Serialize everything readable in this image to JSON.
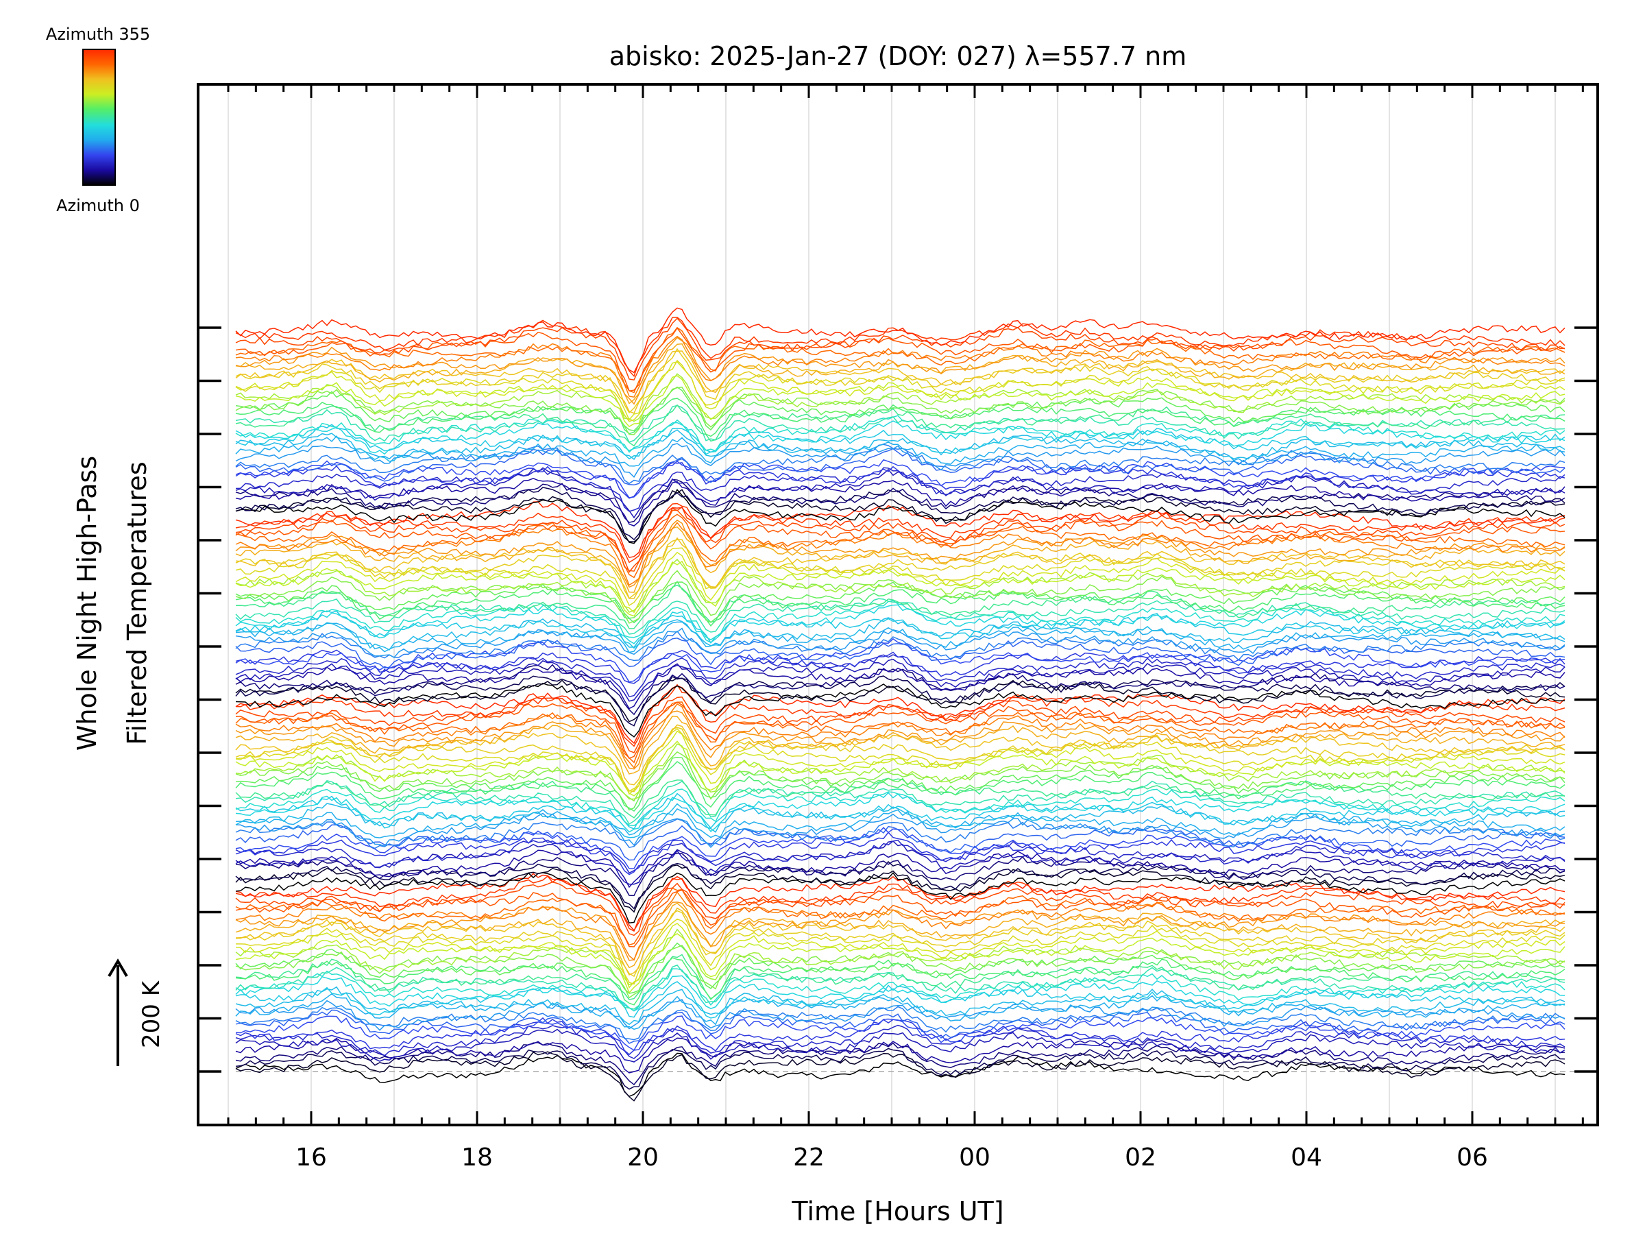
{
  "chart_data": {
    "type": "line",
    "title": "abisko: 2025-Jan-27 (DOY: 027) λ=557.7 nm",
    "xlabel": "Time [Hours UT]",
    "ylabel_line1": "Whole Night High-Pass",
    "ylabel_line2": "Filtered Temperatures",
    "scale_label": "200 K",
    "xlim_hours_ut": [
      "15:10",
      "07:20"
    ],
    "x_ticks": [
      "16",
      "18",
      "20",
      "22",
      "00",
      "02",
      "04",
      "06"
    ],
    "grid": true,
    "legend": {
      "position": "top-left",
      "type": "colorbar",
      "top_label": "Azimuth 355",
      "bottom_label": "Azimuth 0",
      "azimuth_range_deg": [
        0,
        355
      ]
    },
    "series_layout": {
      "series_count": 144,
      "azimuth_step_deg": 2.5,
      "offset_per_series_K": 9.72
    },
    "colormap_stops": [
      "#000000",
      "#1a0aa0",
      "#3344ee",
      "#22aaee",
      "#22dddd",
      "#55ee66",
      "#ccee22",
      "#f0c020",
      "#ff6600",
      "#ff2a00"
    ],
    "events": [
      {
        "hour_ut": "16:15",
        "amplitude_K": 24
      },
      {
        "hour_ut": "16:50",
        "amplitude_K": -22
      },
      {
        "hour_ut": "18:40",
        "amplitude_K": 18
      },
      {
        "hour_ut": "19:00",
        "amplitude_K": 16
      },
      {
        "hour_ut": "19:52",
        "amplitude_K": -75
      },
      {
        "hour_ut": "20:25",
        "amplitude_K": 45
      },
      {
        "hour_ut": "20:50",
        "amplitude_K": -45
      },
      {
        "hour_ut": "21:15",
        "amplitude_K": 10
      },
      {
        "hour_ut": "23:00",
        "amplitude_K": 24
      },
      {
        "hour_ut": "23:40",
        "amplitude_K": -15
      },
      {
        "hour_ut": "00:30",
        "amplitude_K": 18
      },
      {
        "hour_ut": "01:20",
        "amplitude_K": 15
      },
      {
        "hour_ut": "02:10",
        "amplitude_K": 20
      },
      {
        "hour_ut": "03:10",
        "amplitude_K": -12
      },
      {
        "hour_ut": "04:00",
        "amplitude_K": 12
      },
      {
        "hour_ut": "05:20",
        "amplitude_K": -8
      }
    ]
  }
}
